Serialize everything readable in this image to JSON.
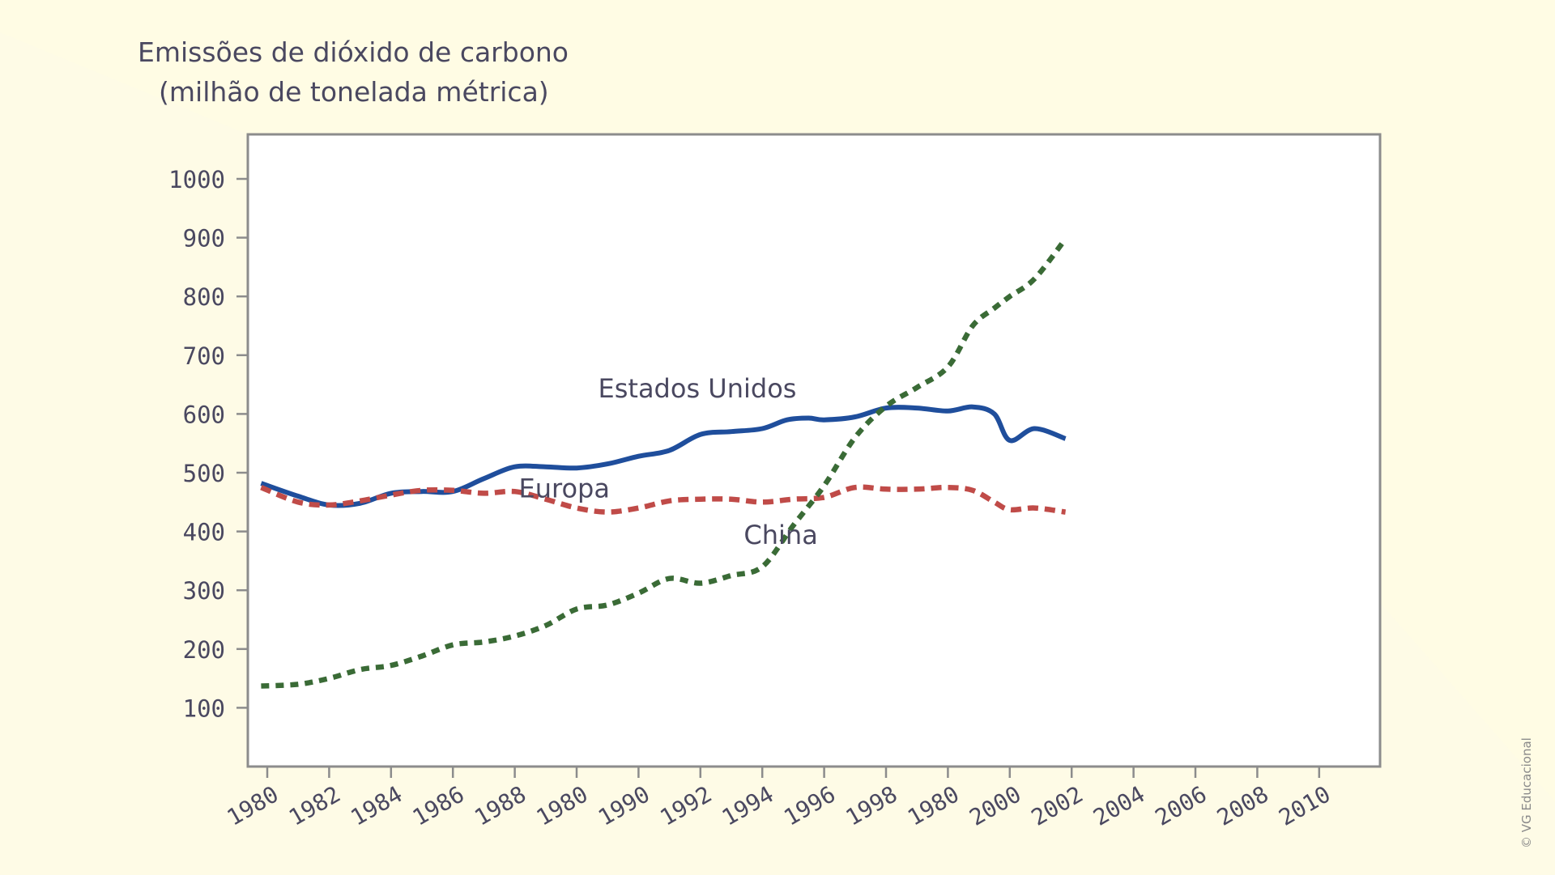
{
  "chart_data": {
    "type": "line",
    "ytitle": [
      "Emissões de dióxido de carbono",
      "(milhão de tonelada métrica)"
    ],
    "x_tick_labels": [
      "1980",
      "1982",
      "1984",
      "1986",
      "1988",
      "1980",
      "1990",
      "1992",
      "1994",
      "1996",
      "1998",
      "1980",
      "2000",
      "2002",
      "2004",
      "2006",
      "2008",
      "2010"
    ],
    "y_ticks": [
      100,
      200,
      300,
      400,
      500,
      600,
      700,
      800,
      900,
      1000
    ],
    "ylim": [
      0,
      1100
    ],
    "grid": false,
    "series": [
      {
        "name": "Estados Unidos",
        "color": "#1f4e9c",
        "style": "solid",
        "x": [
          1979.8,
          1981,
          1982,
          1983,
          1984,
          1985,
          1986,
          1987,
          1988,
          1989,
          1990,
          1991,
          1992,
          1993,
          1994,
          1995,
          1996,
          1996.8,
          1997.5,
          1998,
          1999,
          2000,
          2001,
          2002,
          2002.8,
          2003.5,
          2004,
          2004.8,
          2005.8
        ],
        "values": [
          482,
          460,
          445,
          448,
          465,
          468,
          468,
          490,
          510,
          510,
          508,
          515,
          528,
          538,
          565,
          570,
          575,
          590,
          593,
          590,
          595,
          610,
          610,
          605,
          612,
          600,
          555,
          575,
          558
        ]
      },
      {
        "name": "Europa",
        "color": "#c04b48",
        "style": "dashed",
        "x": [
          1979.8,
          1981,
          1982,
          1983,
          1984,
          1985,
          1986,
          1987,
          1988,
          1989,
          1990,
          1991,
          1992,
          1993,
          1994,
          1995,
          1996,
          1997,
          1998,
          1999,
          2000,
          2001,
          2002,
          2002.8,
          2003.5,
          2004,
          2004.8,
          2005.8
        ],
        "values": [
          475,
          450,
          445,
          452,
          462,
          470,
          470,
          465,
          468,
          455,
          440,
          433,
          440,
          452,
          455,
          455,
          450,
          455,
          458,
          475,
          472,
          472,
          475,
          470,
          450,
          437,
          440,
          433
        ]
      },
      {
        "name": "China",
        "color": "#3a6b36",
        "style": "dotted",
        "x": [
          1979.8,
          1981,
          1982,
          1983,
          1984,
          1985,
          1986,
          1987,
          1988,
          1989,
          1990,
          1991,
          1992,
          1993,
          1994,
          1995,
          1996,
          1997,
          1998,
          1999,
          2000,
          2001,
          2002,
          2002.8,
          2003.5,
          2004,
          2004.8,
          2005.8
        ],
        "values": [
          137,
          140,
          150,
          165,
          172,
          188,
          207,
          212,
          222,
          240,
          268,
          275,
          295,
          320,
          312,
          325,
          340,
          410,
          478,
          560,
          613,
          645,
          680,
          750,
          780,
          800,
          830,
          898
        ]
      }
    ],
    "annotations": [
      {
        "text": "Estados Unidos",
        "x": 1993.9,
        "y": 628,
        "color": "#4a4860"
      },
      {
        "text": "Europa",
        "x": 1989.6,
        "y": 458,
        "color": "#4a4860"
      },
      {
        "text": "China",
        "x": 1996.6,
        "y": 379,
        "color": "#4a4860"
      }
    ]
  },
  "credit": "© VG Educacional"
}
